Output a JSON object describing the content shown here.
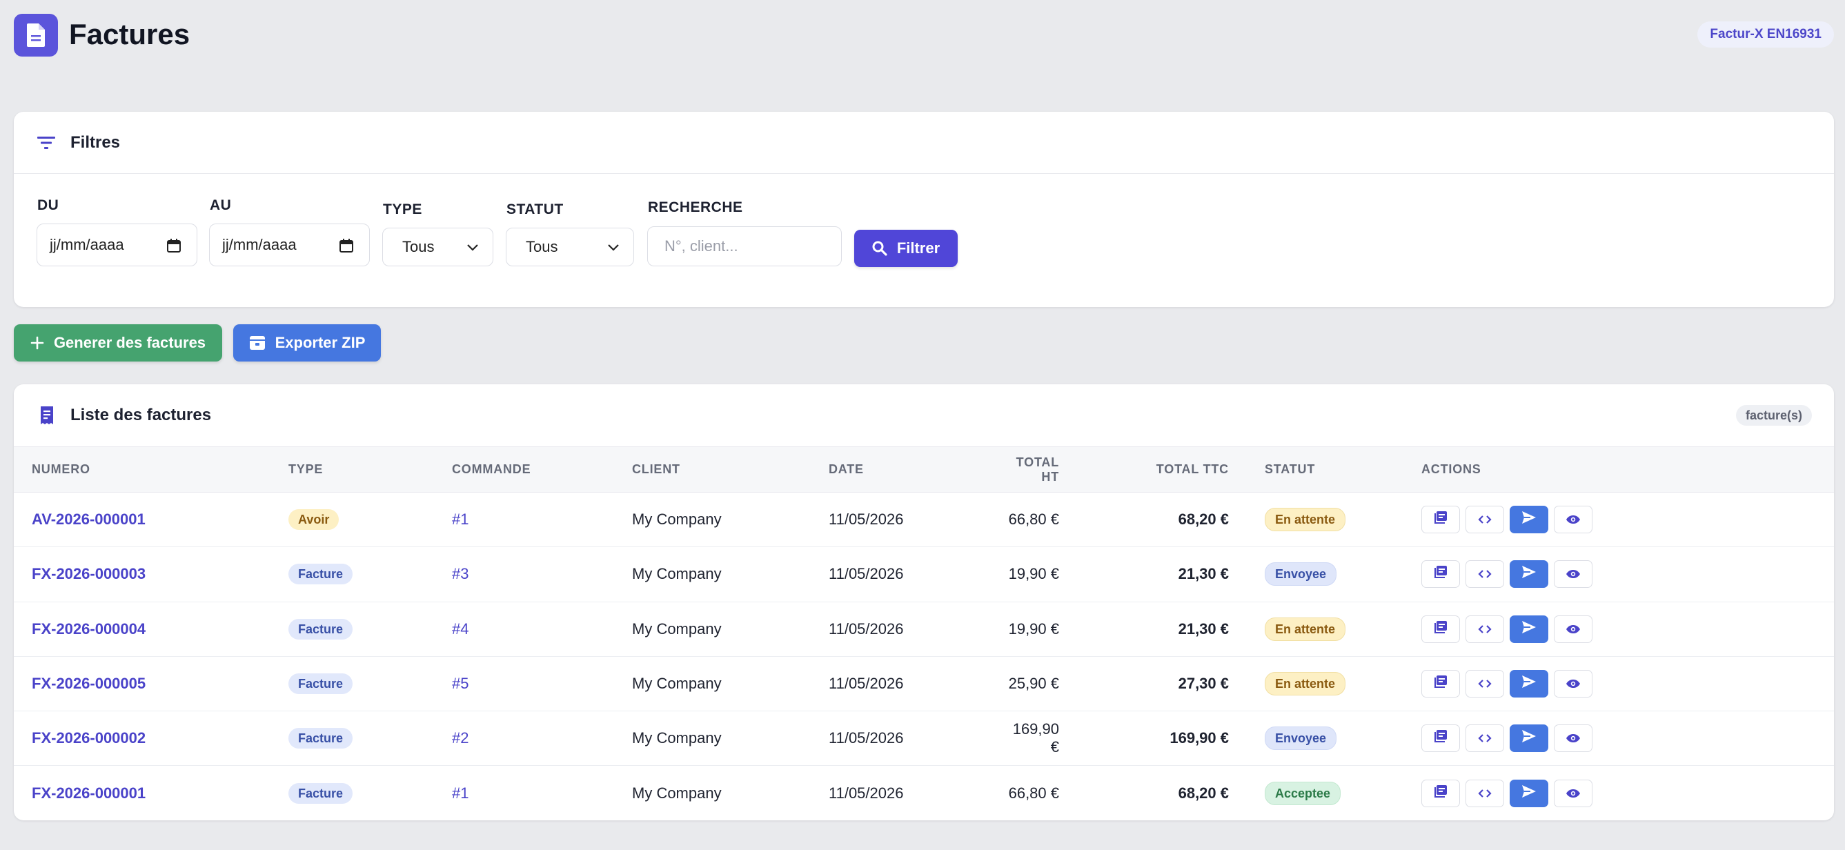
{
  "header": {
    "title": "Factures",
    "badge": "Factur-X EN16931"
  },
  "filters": {
    "title": "Filtres",
    "from": {
      "label": "DU",
      "placeholder": "jj/mm/aaaa"
    },
    "to": {
      "label": "AU",
      "placeholder": "jj/mm/aaaa"
    },
    "type": {
      "label": "TYPE",
      "value": "Tous"
    },
    "status": {
      "label": "STATUT",
      "value": "Tous"
    },
    "search": {
      "label": "RECHERCHE",
      "placeholder": "N°, client..."
    },
    "submit_label": "Filtrer"
  },
  "toolbar": {
    "generate_label": "Generer des factures",
    "export_label": "Exporter ZIP"
  },
  "list": {
    "title": "Liste des factures",
    "count_label": "facture(s)",
    "columns": [
      "NUMERO",
      "TYPE",
      "COMMANDE",
      "CLIENT",
      "DATE",
      "TOTAL HT",
      "TOTAL TTC",
      "STATUT",
      "ACTIONS"
    ],
    "rows": [
      {
        "numero": "AV-2026-000001",
        "type": "Avoir",
        "commande": "#1",
        "client": "My Company",
        "date": "11/05/2026",
        "total_ht": "66,80 €",
        "total_ttc": "68,20 €",
        "statut": "En attente"
      },
      {
        "numero": "FX-2026-000003",
        "type": "Facture",
        "commande": "#3",
        "client": "My Company",
        "date": "11/05/2026",
        "total_ht": "19,90 €",
        "total_ttc": "21,30 €",
        "statut": "Envoyee"
      },
      {
        "numero": "FX-2026-000004",
        "type": "Facture",
        "commande": "#4",
        "client": "My Company",
        "date": "11/05/2026",
        "total_ht": "19,90 €",
        "total_ttc": "21,30 €",
        "statut": "En attente"
      },
      {
        "numero": "FX-2026-000005",
        "type": "Facture",
        "commande": "#5",
        "client": "My Company",
        "date": "11/05/2026",
        "total_ht": "25,90 €",
        "total_ttc": "27,30 €",
        "statut": "En attente"
      },
      {
        "numero": "FX-2026-000002",
        "type": "Facture",
        "commande": "#2",
        "client": "My Company",
        "date": "11/05/2026",
        "total_ht": "169,90 €",
        "total_ttc": "169,90 €",
        "statut": "Envoyee"
      },
      {
        "numero": "FX-2026-000001",
        "type": "Facture",
        "commande": "#1",
        "client": "My Company",
        "date": "11/05/2026",
        "total_ht": "66,80 €",
        "total_ttc": "68,20 €",
        "statut": "Acceptee"
      }
    ]
  },
  "icons": {
    "app": "document-icon",
    "filter": "filter-lines-icon",
    "calendar": "calendar-icon",
    "dropdown": "chevron-down-icon",
    "search": "search-icon",
    "plus": "plus-icon",
    "archive": "archive-icon",
    "list": "receipt-icon",
    "pdf": "pdf-icon",
    "xml": "code-icon",
    "send": "send-icon",
    "view": "eye-icon"
  },
  "colors": {
    "accent": "#5046d8",
    "success": "#45a36f",
    "export": "#4577e0",
    "background": "#e9eaed"
  }
}
